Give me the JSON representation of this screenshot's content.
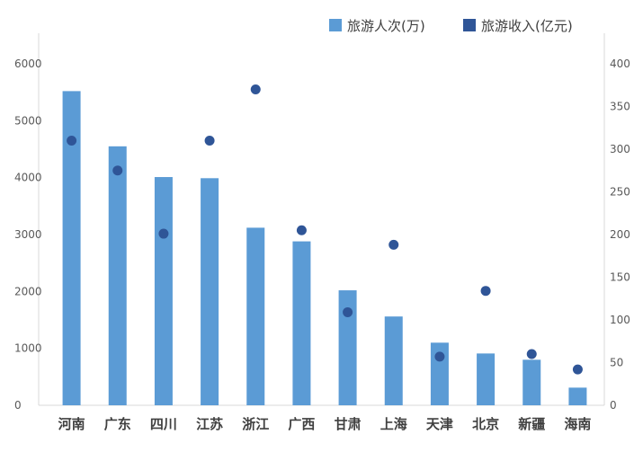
{
  "chart_data": {
    "type": "bar",
    "categories": [
      "河南",
      "广东",
      "四川",
      "江苏",
      "浙江",
      "广西",
      "甘肃",
      "上海",
      "天津",
      "北京",
      "新疆",
      "海南"
    ],
    "series": [
      {
        "name": "旅游人次(万)",
        "type": "bar",
        "axis": "left",
        "color": "#5b9bd5",
        "values": [
          5520,
          4550,
          4010,
          3990,
          3120,
          2880,
          2020,
          1560,
          1100,
          910,
          800,
          310
        ]
      },
      {
        "name": "旅游收入(亿元)",
        "type": "scatter",
        "axis": "right",
        "color": "#2f5597",
        "values": [
          310,
          275,
          201,
          310,
          370,
          205,
          109,
          188,
          57,
          134,
          60,
          42
        ]
      }
    ],
    "y_left": {
      "min": 0,
      "max": 6000,
      "ticks": [
        0,
        1000,
        2000,
        3000,
        4000,
        5000,
        6000
      ]
    },
    "y_right": {
      "min": 0,
      "max": 400,
      "ticks": [
        0,
        50,
        100,
        150,
        200,
        250,
        300,
        350,
        400
      ]
    },
    "legend_position": "top-right",
    "grid": false
  }
}
